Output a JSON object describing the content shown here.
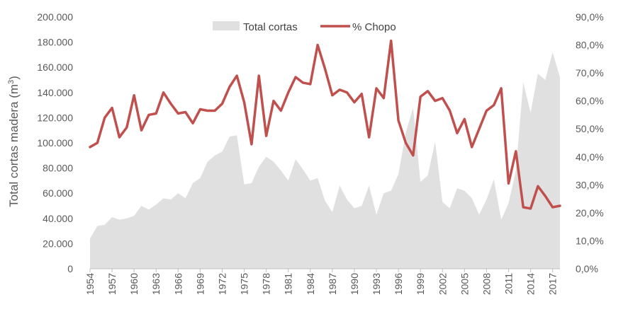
{
  "chart_data": {
    "type": "area+line",
    "title": "",
    "ylabel_left_text": "Total cortas madera (m",
    "ylabel_left_sup": "3",
    "ylabel_left_close": ")",
    "legend": [
      {
        "name": "Total cortas",
        "type": "area",
        "color": "#e0e0e0"
      },
      {
        "name": "% Chopo",
        "type": "line",
        "color": "#c0504d"
      }
    ],
    "legend_position": "top-center",
    "x": [
      1954,
      1955,
      1956,
      1957,
      1958,
      1959,
      1960,
      1961,
      1962,
      1963,
      1964,
      1965,
      1966,
      1967,
      1968,
      1969,
      1970,
      1971,
      1972,
      1973,
      1974,
      1975,
      1976,
      1977,
      1978,
      1979,
      1980,
      1981,
      1982,
      1983,
      1984,
      1985,
      1986,
      1987,
      1988,
      1989,
      1990,
      1991,
      1992,
      1993,
      1994,
      1995,
      1996,
      1997,
      1998,
      1999,
      2000,
      2001,
      2002,
      2003,
      2004,
      2005,
      2006,
      2007,
      2008,
      2009,
      2010,
      2011,
      2012,
      2013,
      2014,
      2015,
      2016,
      2017,
      2018
    ],
    "x_tick_labels": [
      "1954",
      "1957",
      "1960",
      "1963",
      "1966",
      "1969",
      "1972",
      "1975",
      "1978",
      "1981",
      "1984",
      "1987",
      "1990",
      "1993",
      "1996",
      "1999",
      "2002",
      "2005",
      "2008",
      "2011",
      "2014",
      "2017"
    ],
    "series": [
      {
        "name": "Total cortas",
        "axis": "left",
        "values": [
          24000,
          34000,
          35000,
          41000,
          39000,
          40000,
          42000,
          50000,
          47000,
          51000,
          56000,
          55000,
          60000,
          56000,
          68000,
          72000,
          85000,
          90000,
          93000,
          105000,
          106000,
          67000,
          68000,
          81000,
          89000,
          85000,
          78000,
          70000,
          87000,
          79000,
          70000,
          72000,
          54000,
          45000,
          66000,
          55000,
          48000,
          50000,
          66000,
          43000,
          60000,
          62000,
          75000,
          108000,
          128000,
          69000,
          74000,
          101000,
          53000,
          48000,
          64000,
          62000,
          56000,
          43000,
          55000,
          71000,
          39000,
          52000,
          78000,
          148000,
          124000,
          155000,
          150000,
          172000,
          152000
        ]
      },
      {
        "name": "% Chopo",
        "axis": "right",
        "values": [
          43.5,
          45.0,
          54.0,
          57.5,
          47.0,
          50.5,
          62.0,
          49.5,
          55.0,
          55.5,
          63.0,
          59.0,
          55.5,
          56.0,
          52.0,
          57.0,
          56.5,
          56.5,
          59.0,
          65.0,
          69.0,
          59.5,
          44.5,
          69.0,
          47.5,
          60.0,
          56.5,
          63.0,
          68.5,
          66.5,
          66.0,
          80.0,
          71.5,
          62.0,
          64.0,
          63.0,
          59.5,
          62.5,
          47.0,
          64.5,
          61.0,
          81.5,
          53.0,
          45.0,
          40.5,
          61.5,
          63.5,
          60.0,
          61.0,
          56.5,
          48.5,
          53.5,
          43.5,
          50.0,
          56.5,
          58.5,
          64.5,
          30.5,
          42.0,
          22.0,
          21.5,
          29.5,
          26.0,
          22.0,
          22.5
        ]
      }
    ],
    "y_left": {
      "min": 0,
      "max": 200000,
      "step": 20000,
      "tick_labels": [
        "0",
        "20.000",
        "40.000",
        "60.000",
        "80.000",
        "100.000",
        "120.000",
        "140.000",
        "160.000",
        "180.000",
        "200.000"
      ]
    },
    "y_right": {
      "min": 0,
      "max": 90,
      "step": 10,
      "tick_labels": [
        "0,0%",
        "10,0%",
        "20,0%",
        "30,0%",
        "40,0%",
        "50,0%",
        "60,0%",
        "70,0%",
        "80,0%",
        "90,0%"
      ]
    },
    "grid": false
  }
}
